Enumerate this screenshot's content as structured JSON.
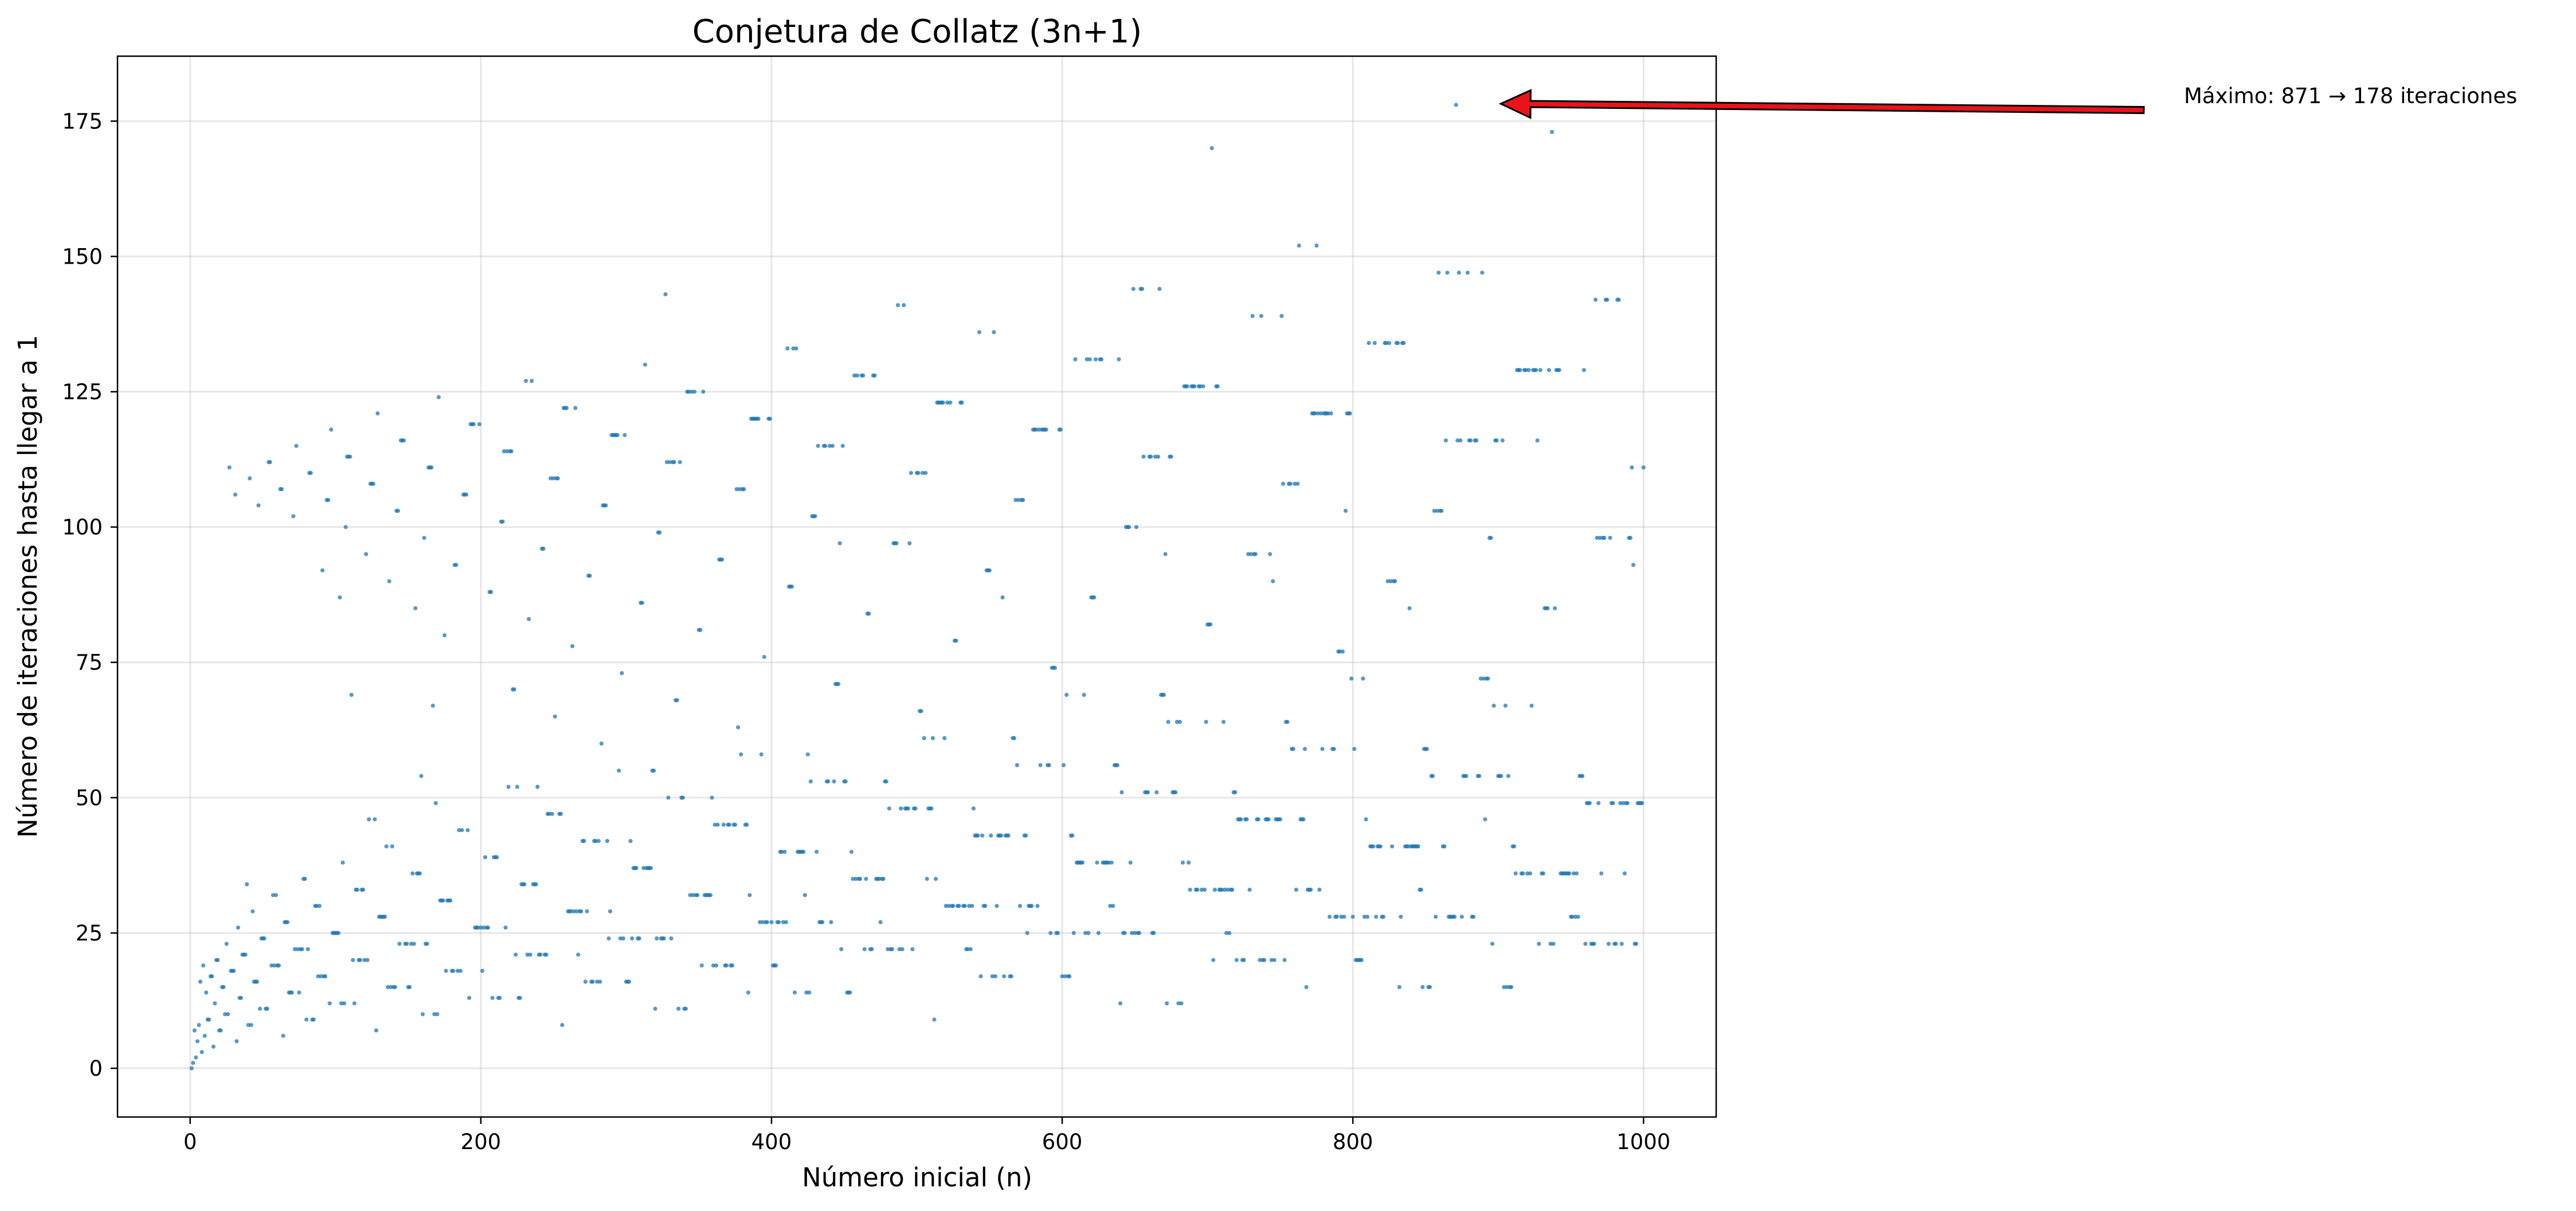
{
  "chart_data": {
    "type": "scatter",
    "title": "Conjetura de Collatz (3n+1)",
    "xlabel": "Número inicial (n)",
    "ylabel": "Número de iteraciones hasta llegar a 1",
    "xlim": [
      -50,
      1050
    ],
    "ylim": [
      -9,
      187
    ],
    "xticks": [
      0,
      200,
      400,
      600,
      800,
      1000
    ],
    "yticks": [
      0,
      25,
      50,
      75,
      100,
      125,
      150,
      175
    ],
    "grid": true,
    "point_color": "#1f77b4",
    "series": [
      {
        "x_start": 1,
        "x_end": 1000,
        "values_rule": "3n+1"
      }
    ],
    "annotation": {
      "text": "Máximo: 871 → 178 iteraciones",
      "point": [
        871,
        178
      ],
      "arrow_color": "#e8141a"
    }
  }
}
